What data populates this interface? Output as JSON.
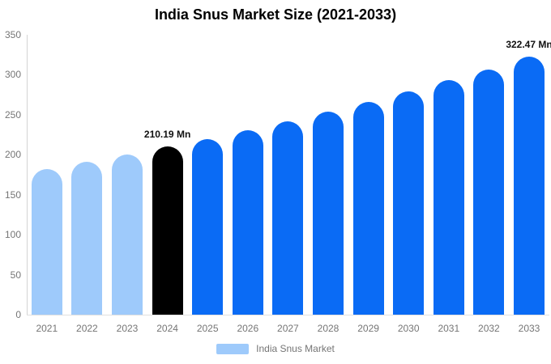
{
  "title": "India Snus Market Size (2021-2033)",
  "legend": {
    "label": "India Snus Market",
    "swatch_color": "#9ECAFB"
  },
  "colors": {
    "light_blue": "#9ECAFB",
    "blue": "#0A6BF5",
    "black": "#000000",
    "axis_text": "#757575",
    "axis_line": "#D4D4D4"
  },
  "chart_data": {
    "type": "bar",
    "title": "India Snus Market Size (2021-2033)",
    "xlabel": "",
    "ylabel": "",
    "ylim": [
      0,
      350
    ],
    "yticks": [
      0,
      50,
      100,
      150,
      200,
      250,
      300,
      350
    ],
    "grid": false,
    "legend_position": "bottom",
    "categories": [
      "2021",
      "2022",
      "2023",
      "2024",
      "2025",
      "2026",
      "2027",
      "2028",
      "2029",
      "2030",
      "2031",
      "2032",
      "2033"
    ],
    "series": [
      {
        "name": "India Snus Market",
        "values": [
          182,
          191,
          200,
          210.19,
          220,
          231,
          242,
          254,
          266,
          279,
          293,
          307,
          322.47
        ]
      }
    ],
    "bar_colors": [
      "#9ECAFB",
      "#9ECAFB",
      "#9ECAFB",
      "#000000",
      "#0A6BF5",
      "#0A6BF5",
      "#0A6BF5",
      "#0A6BF5",
      "#0A6BF5",
      "#0A6BF5",
      "#0A6BF5",
      "#0A6BF5",
      "#0A6BF5"
    ],
    "point_labels": [
      null,
      null,
      null,
      "210.19 Mn",
      null,
      null,
      null,
      null,
      null,
      null,
      null,
      null,
      "322.47 Mn"
    ]
  }
}
